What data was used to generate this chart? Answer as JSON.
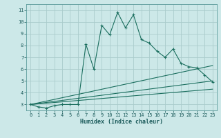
{
  "title": "",
  "xlabel": "Humidex (Indice chaleur)",
  "bg_color": "#cce8e8",
  "grid_color": "#aacccc",
  "line_color": "#1a6e5e",
  "xlim": [
    -0.5,
    23.5
  ],
  "ylim": [
    2.5,
    11.5
  ],
  "xticks": [
    0,
    1,
    2,
    3,
    4,
    5,
    6,
    7,
    8,
    9,
    10,
    11,
    12,
    13,
    14,
    15,
    16,
    17,
    18,
    19,
    20,
    21,
    22,
    23
  ],
  "yticks": [
    3,
    4,
    5,
    6,
    7,
    8,
    9,
    10,
    11
  ],
  "lines": [
    {
      "x": [
        0,
        1,
        2,
        3,
        4,
        5,
        6,
        7,
        8,
        9,
        10,
        11,
        12,
        13,
        14,
        15,
        16,
        17,
        18,
        19,
        20,
        21,
        22,
        23
      ],
      "y": [
        3.0,
        2.8,
        2.7,
        2.9,
        3.0,
        3.0,
        3.0,
        8.1,
        6.0,
        9.7,
        8.9,
        10.8,
        9.5,
        10.6,
        8.5,
        8.2,
        7.5,
        7.0,
        7.7,
        6.5,
        6.2,
        6.1,
        5.5,
        4.9
      ],
      "marker": true
    },
    {
      "x": [
        0,
        23
      ],
      "y": [
        3.0,
        6.3
      ],
      "marker": false
    },
    {
      "x": [
        0,
        23
      ],
      "y": [
        3.0,
        5.0
      ],
      "marker": false
    },
    {
      "x": [
        0,
        23
      ],
      "y": [
        3.0,
        4.3
      ],
      "marker": false
    }
  ]
}
